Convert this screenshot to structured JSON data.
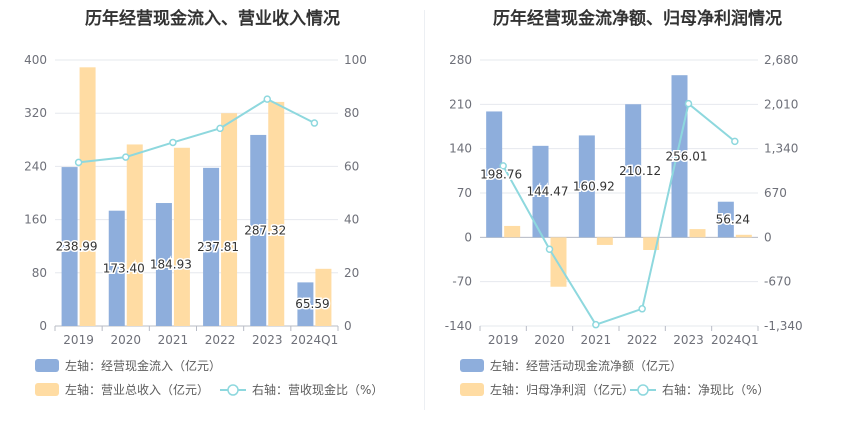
{
  "chart_data": [
    {
      "type": "bar",
      "title": "历年经营现金流入、营业收入情况",
      "categories": [
        "2019",
        "2020",
        "2021",
        "2022",
        "2023",
        "2024Q1"
      ],
      "y_left": {
        "range": [
          0,
          400
        ],
        "ticks": [
          "0",
          "80",
          "160",
          "240",
          "320",
          "400"
        ]
      },
      "y_right": {
        "range": [
          0,
          100
        ],
        "ticks": [
          "0",
          "20",
          "40",
          "60",
          "80",
          "100"
        ]
      },
      "grid": true,
      "legend_position": "bottom-left",
      "series": [
        {
          "name": "左轴：经营现金流入（亿元）",
          "kind": "bar",
          "axis": "left",
          "color": "#8eaedc",
          "values": [
            238.99,
            173.4,
            184.93,
            237.81,
            287.32,
            65.59
          ],
          "labels": [
            "238.99",
            "173.40",
            "184.93",
            "237.81",
            "287.32",
            "65.59"
          ]
        },
        {
          "name": "左轴：营业总收入（亿元）",
          "kind": "bar",
          "axis": "left",
          "color": "#ffdca3",
          "values": [
            389,
            273,
            268,
            320,
            337,
            86
          ]
        },
        {
          "name": "右轴：营收现金比（%）",
          "kind": "line",
          "axis": "right",
          "color": "#8ed8de",
          "values": [
            61.5,
            63.5,
            69,
            74.3,
            85.3,
            76.3
          ]
        }
      ]
    },
    {
      "type": "bar",
      "title": "历年经营现金流净额、归母净利润情况",
      "categories": [
        "2019",
        "2020",
        "2021",
        "2022",
        "2023",
        "2024Q1"
      ],
      "y_left": {
        "range": [
          -140,
          280
        ],
        "ticks": [
          "-140",
          "-70",
          "0",
          "70",
          "140",
          "210",
          "280"
        ]
      },
      "y_right": {
        "range": [
          -1340,
          2680
        ],
        "ticks": [
          "-1,340",
          "-670",
          "0",
          "670",
          "1,340",
          "2,010",
          "2,680"
        ]
      },
      "grid": true,
      "legend_position": "bottom-left",
      "series": [
        {
          "name": "左轴：经营活动现金流净额（亿元）",
          "kind": "bar",
          "axis": "left",
          "color": "#8eaedc",
          "values": [
            198.76,
            144.47,
            160.92,
            210.12,
            256.01,
            56.24
          ],
          "labels": [
            "198.76",
            "144.47",
            "160.92",
            "210.12",
            "256.01",
            "56.24"
          ]
        },
        {
          "name": "左轴：归母净利润（亿元）",
          "kind": "bar",
          "axis": "left",
          "color": "#ffdca3",
          "values": [
            18,
            -78,
            -12,
            -20,
            13,
            4
          ]
        },
        {
          "name": "右轴：净现比（%）",
          "kind": "line",
          "axis": "right",
          "color": "#8ed8de",
          "values": [
            1080,
            -180,
            -1320,
            -1080,
            2020,
            1450
          ]
        }
      ]
    }
  ]
}
